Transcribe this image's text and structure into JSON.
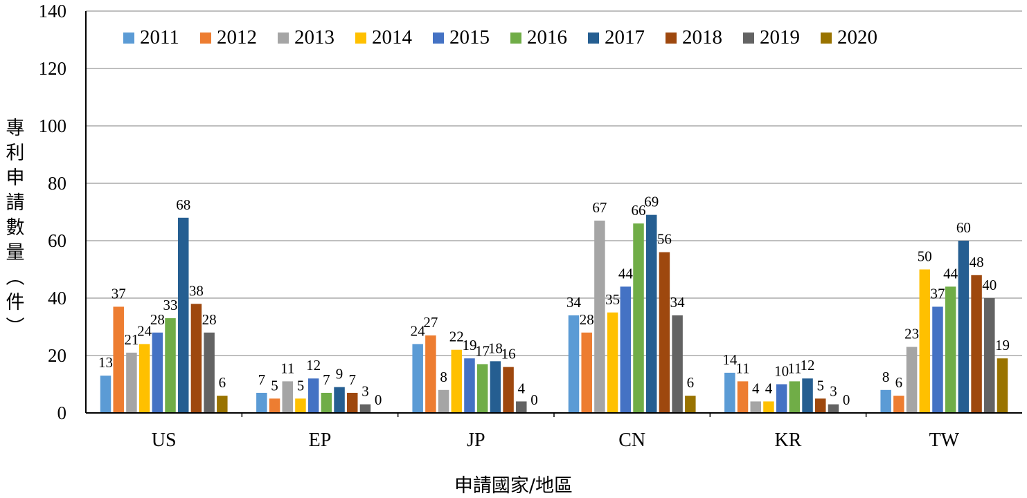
{
  "chart_data": {
    "type": "bar",
    "categories": [
      "US",
      "EP",
      "JP",
      "CN",
      "KR",
      "TW"
    ],
    "series": [
      {
        "name": "2011",
        "color": "#5B9BD5",
        "values": [
          13,
          7,
          24,
          34,
          14,
          8
        ]
      },
      {
        "name": "2012",
        "color": "#ED7D31",
        "values": [
          37,
          5,
          27,
          28,
          11,
          6
        ]
      },
      {
        "name": "2013",
        "color": "#A5A5A5",
        "values": [
          21,
          11,
          8,
          67,
          4,
          23
        ]
      },
      {
        "name": "2014",
        "color": "#FFC000",
        "values": [
          24,
          5,
          22,
          35,
          4,
          50
        ]
      },
      {
        "name": "2015",
        "color": "#4472C4",
        "values": [
          28,
          12,
          19,
          44,
          10,
          37
        ]
      },
      {
        "name": "2016",
        "color": "#70AD47",
        "values": [
          33,
          7,
          17,
          66,
          11,
          44
        ]
      },
      {
        "name": "2017",
        "color": "#255E91",
        "values": [
          68,
          9,
          18,
          69,
          12,
          60
        ]
      },
      {
        "name": "2018",
        "color": "#9E480E",
        "values": [
          38,
          7,
          16,
          56,
          5,
          48
        ]
      },
      {
        "name": "2019",
        "color": "#636363",
        "values": [
          28,
          3,
          4,
          34,
          3,
          40
        ]
      },
      {
        "name": "2020",
        "color": "#997300",
        "values": [
          6,
          0,
          0,
          6,
          0,
          19
        ]
      }
    ],
    "xlabel": "申請國家/地區",
    "ylabel": "專利申請數量(件)",
    "ylim": [
      0,
      140
    ],
    "yticks": [
      0,
      20,
      40,
      60,
      80,
      100,
      120,
      140
    ],
    "grid": true,
    "legend_position": "top"
  }
}
